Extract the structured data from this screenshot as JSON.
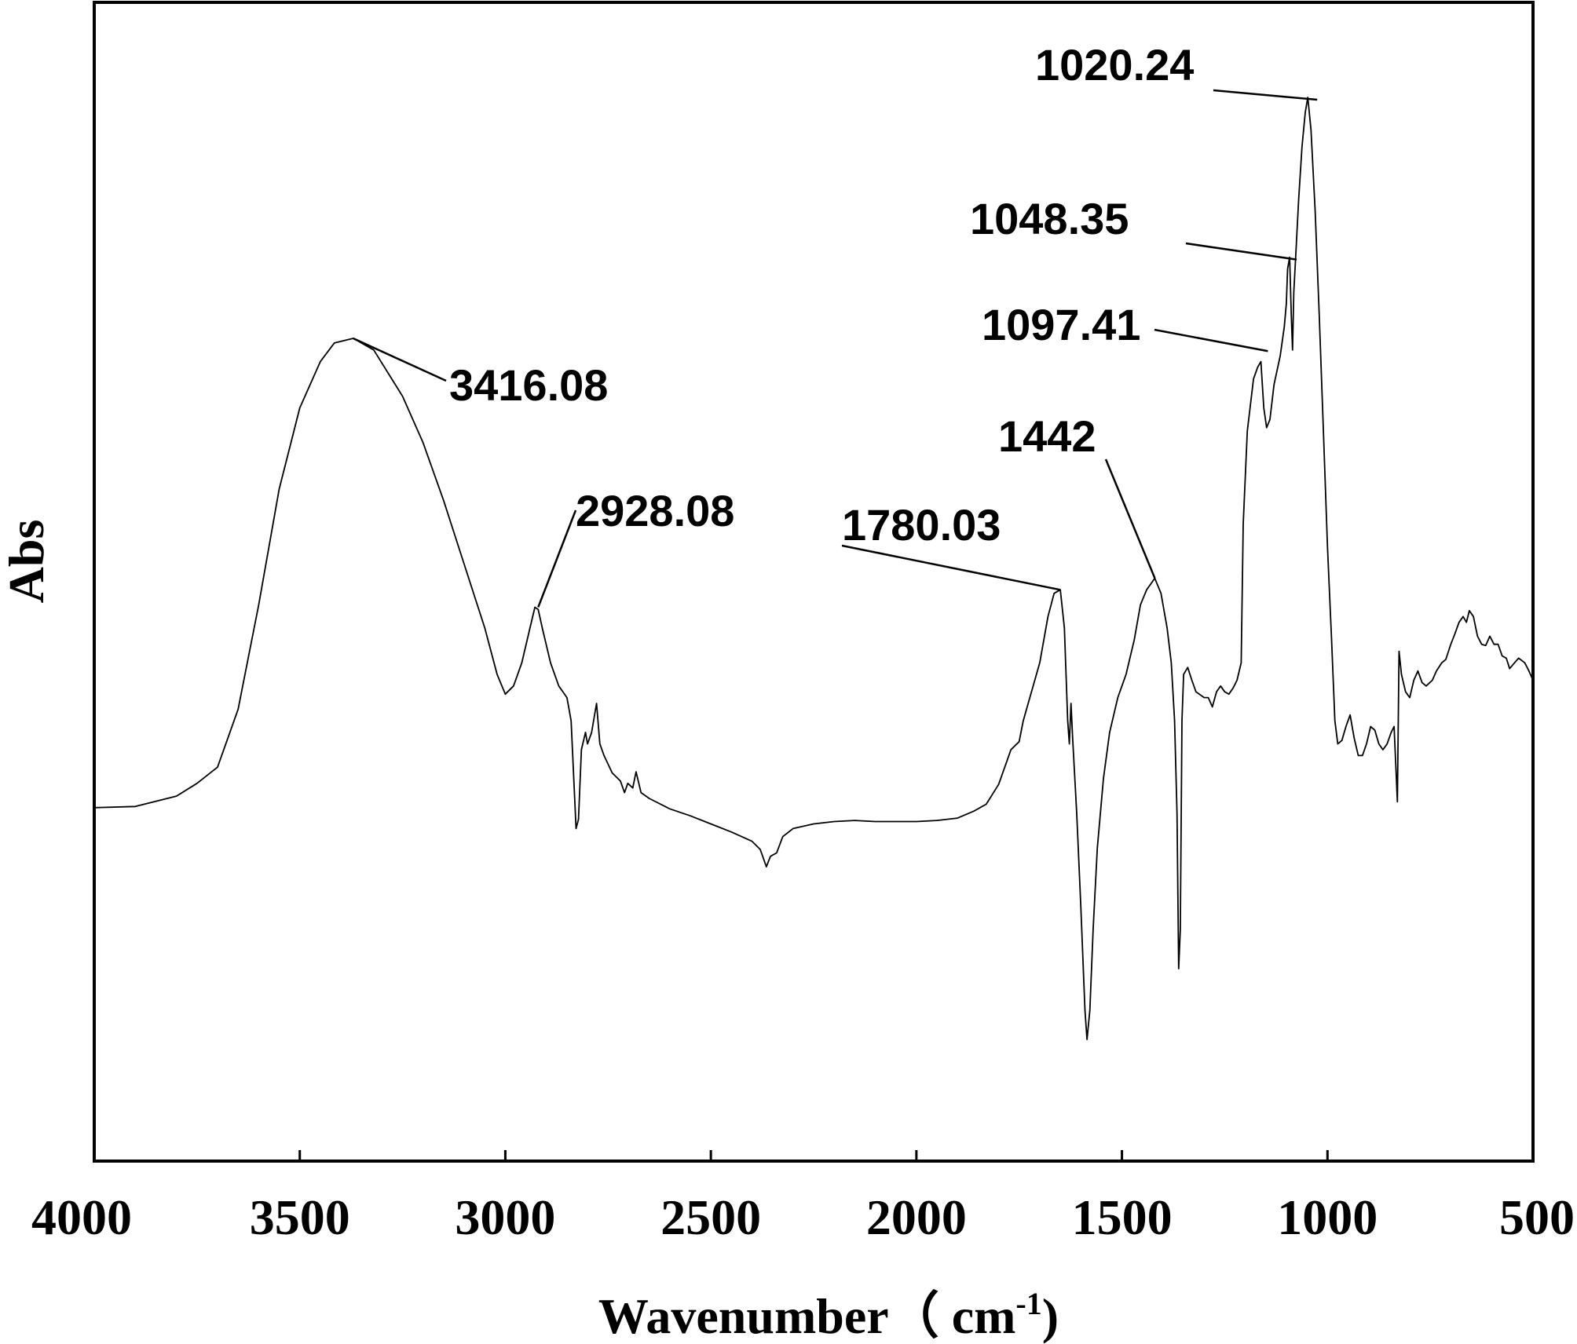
{
  "chart_data": {
    "type": "line",
    "title": "",
    "xlabel": "Wavenumber（ cm",
    "xlabel_superscript": "-1",
    "xlabel_close": ")",
    "ylabel": "Abs",
    "xlim": [
      4000,
      500
    ],
    "ylim": [
      0,
      100
    ],
    "x_reversed": true,
    "y_tick_labels_shown": false,
    "grid": false,
    "legend": "none",
    "line_color": "#000000",
    "x_ticks": [
      4000,
      3500,
      3000,
      2500,
      2000,
      1500,
      1000,
      500
    ],
    "x_tick_labels": [
      "4000",
      "3500",
      "3000",
      "2500",
      "2000",
      "1500",
      "1000",
      "500"
    ],
    "annotations": [
      {
        "text": "3416.08",
        "x": 3370,
        "y": 71.0
      },
      {
        "text": "2928.08",
        "x": 2920,
        "y": 47.8
      },
      {
        "text": "1780.03",
        "x": 1650,
        "y": 49.3
      },
      {
        "text": "1442",
        "x": 1420,
        "y": 50.3
      },
      {
        "text": "1097.41",
        "x": 1145,
        "y": 69.9
      },
      {
        "text": "1048.35",
        "x": 1075,
        "y": 77.8
      },
      {
        "text": "1020.24",
        "x": 1025,
        "y": 91.6
      }
    ],
    "series": [
      {
        "values": [
          [
            4000,
            30.5
          ],
          [
            3900,
            30.6
          ],
          [
            3800,
            31.5
          ],
          [
            3750,
            32.6
          ],
          [
            3700,
            34.0
          ],
          [
            3650,
            39.0
          ],
          [
            3600,
            48.0
          ],
          [
            3550,
            58.0
          ],
          [
            3500,
            65.0
          ],
          [
            3450,
            69.0
          ],
          [
            3416,
            70.6
          ],
          [
            3370,
            71.0
          ],
          [
            3320,
            70.0
          ],
          [
            3250,
            66.0
          ],
          [
            3200,
            62.0
          ],
          [
            3150,
            57.0
          ],
          [
            3100,
            51.5
          ],
          [
            3050,
            46.0
          ],
          [
            3020,
            42.0
          ],
          [
            3000,
            40.3
          ],
          [
            2980,
            41.0
          ],
          [
            2960,
            43.0
          ],
          [
            2940,
            46.0
          ],
          [
            2928,
            47.8
          ],
          [
            2920,
            47.6
          ],
          [
            2910,
            46.0
          ],
          [
            2890,
            43.0
          ],
          [
            2870,
            41.0
          ],
          [
            2850,
            40.0
          ],
          [
            2840,
            38.0
          ],
          [
            2828,
            28.7
          ],
          [
            2822,
            29.5
          ],
          [
            2815,
            35.5
          ],
          [
            2805,
            37.0
          ],
          [
            2800,
            36.0
          ],
          [
            2790,
            37.0
          ],
          [
            2778,
            39.5
          ],
          [
            2770,
            36.0
          ],
          [
            2760,
            35.0
          ],
          [
            2740,
            33.5
          ],
          [
            2720,
            32.8
          ],
          [
            2710,
            31.8
          ],
          [
            2702,
            32.6
          ],
          [
            2690,
            32.2
          ],
          [
            2682,
            33.6
          ],
          [
            2670,
            31.8
          ],
          [
            2650,
            31.3
          ],
          [
            2600,
            30.4
          ],
          [
            2550,
            29.8
          ],
          [
            2500,
            29.1
          ],
          [
            2450,
            28.4
          ],
          [
            2400,
            27.6
          ],
          [
            2380,
            26.9
          ],
          [
            2365,
            25.4
          ],
          [
            2355,
            26.3
          ],
          [
            2340,
            26.6
          ],
          [
            2325,
            28.0
          ],
          [
            2300,
            28.7
          ],
          [
            2250,
            29.1
          ],
          [
            2200,
            29.3
          ],
          [
            2150,
            29.4
          ],
          [
            2100,
            29.3
          ],
          [
            2050,
            29.3
          ],
          [
            2000,
            29.3
          ],
          [
            1950,
            29.4
          ],
          [
            1900,
            29.6
          ],
          [
            1860,
            30.2
          ],
          [
            1830,
            30.8
          ],
          [
            1800,
            32.5
          ],
          [
            1780,
            34.5
          ],
          [
            1770,
            35.5
          ],
          [
            1750,
            36.2
          ],
          [
            1740,
            38.0
          ],
          [
            1720,
            40.5
          ],
          [
            1700,
            43.0
          ],
          [
            1680,
            47.0
          ],
          [
            1665,
            49.0
          ],
          [
            1650,
            49.3
          ],
          [
            1640,
            46.0
          ],
          [
            1632,
            38.0
          ],
          [
            1628,
            36.0
          ],
          [
            1624,
            39.5
          ],
          [
            1620,
            36.5
          ],
          [
            1610,
            30.0
          ],
          [
            1600,
            22.0
          ],
          [
            1590,
            13.0
          ],
          [
            1585,
            10.5
          ],
          [
            1578,
            13.0
          ],
          [
            1570,
            20.0
          ],
          [
            1560,
            27.0
          ],
          [
            1545,
            33.0
          ],
          [
            1530,
            37.0
          ],
          [
            1510,
            40.0
          ],
          [
            1490,
            42.0
          ],
          [
            1470,
            45.0
          ],
          [
            1455,
            48.0
          ],
          [
            1440,
            49.3
          ],
          [
            1420,
            50.3
          ],
          [
            1405,
            49.0
          ],
          [
            1390,
            46.0
          ],
          [
            1380,
            43.0
          ],
          [
            1372,
            38.0
          ],
          [
            1366,
            30.0
          ],
          [
            1362,
            16.6
          ],
          [
            1358,
            20.0
          ],
          [
            1354,
            38.0
          ],
          [
            1350,
            42.0
          ],
          [
            1340,
            42.6
          ],
          [
            1330,
            41.5
          ],
          [
            1320,
            40.5
          ],
          [
            1300,
            40.0
          ],
          [
            1290,
            40.0
          ],
          [
            1280,
            39.2
          ],
          [
            1270,
            40.5
          ],
          [
            1260,
            41.0
          ],
          [
            1250,
            40.5
          ],
          [
            1240,
            40.3
          ],
          [
            1230,
            40.8
          ],
          [
            1220,
            41.5
          ],
          [
            1210,
            43.0
          ],
          [
            1205,
            55.0
          ],
          [
            1195,
            63.0
          ],
          [
            1180,
            67.5
          ],
          [
            1170,
            68.5
          ],
          [
            1162,
            69.0
          ],
          [
            1155,
            65.0
          ],
          [
            1148,
            63.3
          ],
          [
            1140,
            64.0
          ],
          [
            1130,
            67.0
          ],
          [
            1115,
            69.5
          ],
          [
            1105,
            72.0
          ],
          [
            1100,
            74.0
          ],
          [
            1097,
            77.0
          ],
          [
            1092,
            78.0
          ],
          [
            1088,
            73.0
          ],
          [
            1085,
            70.0
          ],
          [
            1082,
            75.0
          ],
          [
            1077,
            78.3
          ],
          [
            1070,
            83.0
          ],
          [
            1062,
            87.5
          ],
          [
            1054,
            90.5
          ],
          [
            1048,
            91.8
          ],
          [
            1040,
            89.0
          ],
          [
            1030,
            82.0
          ],
          [
            1020,
            73.0
          ],
          [
            1010,
            63.0
          ],
          [
            1000,
            53.0
          ],
          [
            990,
            45.0
          ],
          [
            982,
            38.0
          ],
          [
            975,
            36.0
          ],
          [
            965,
            36.3
          ],
          [
            955,
            37.5
          ],
          [
            945,
            38.5
          ],
          [
            935,
            36.5
          ],
          [
            925,
            35.0
          ],
          [
            915,
            35.0
          ],
          [
            905,
            36.0
          ],
          [
            895,
            37.5
          ],
          [
            885,
            37.2
          ],
          [
            875,
            36.0
          ],
          [
            865,
            35.5
          ],
          [
            855,
            36.0
          ],
          [
            845,
            37.0
          ],
          [
            838,
            37.5
          ],
          [
            830,
            31.0
          ],
          [
            826,
            44.0
          ],
          [
            820,
            42.0
          ],
          [
            810,
            40.5
          ],
          [
            800,
            40.0
          ],
          [
            790,
            41.5
          ],
          [
            780,
            42.3
          ],
          [
            770,
            41.3
          ],
          [
            760,
            41.0
          ],
          [
            745,
            41.5
          ],
          [
            735,
            42.3
          ],
          [
            722,
            43.0
          ],
          [
            712,
            43.3
          ],
          [
            700,
            44.6
          ],
          [
            690,
            45.5
          ],
          [
            680,
            46.5
          ],
          [
            670,
            47.0
          ],
          [
            662,
            46.5
          ],
          [
            655,
            47.5
          ],
          [
            645,
            47.0
          ],
          [
            635,
            45.3
          ],
          [
            625,
            44.6
          ],
          [
            615,
            44.5
          ],
          [
            605,
            45.3
          ],
          [
            595,
            44.6
          ],
          [
            585,
            44.6
          ],
          [
            575,
            43.6
          ],
          [
            565,
            43.4
          ],
          [
            557,
            42.5
          ],
          [
            545,
            43.0
          ],
          [
            535,
            43.4
          ],
          [
            520,
            43.0
          ],
          [
            510,
            42.3
          ],
          [
            500,
            41.5
          ]
        ]
      }
    ]
  }
}
